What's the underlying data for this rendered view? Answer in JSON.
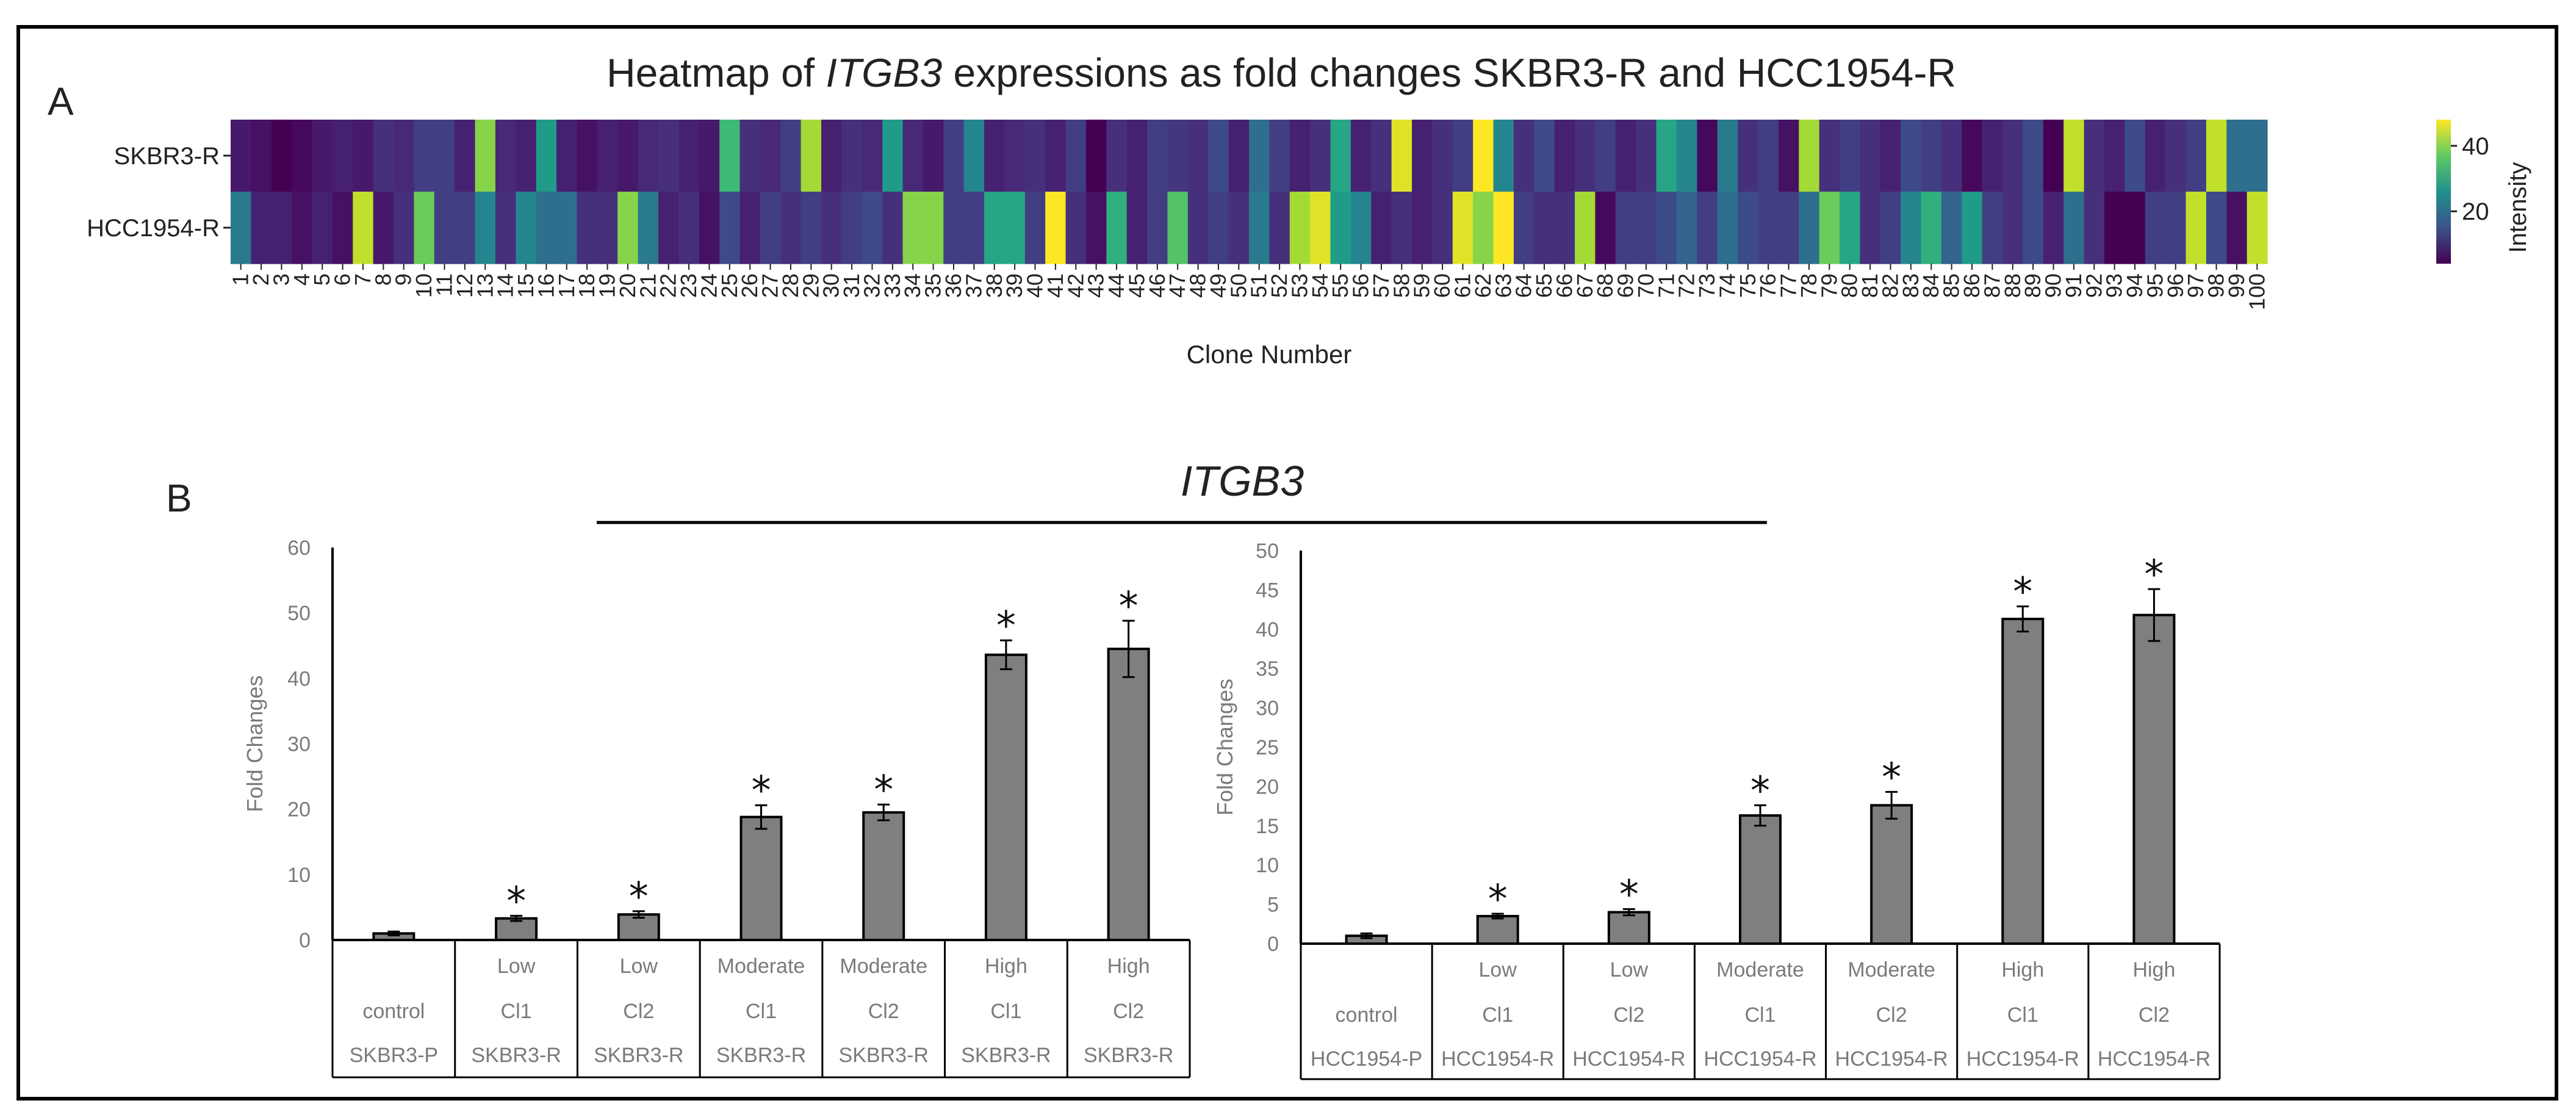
{
  "panel_a": {
    "label": "A",
    "title_prefix": "Heatmap of ",
    "title_gene": "ITGB3",
    "title_suffix": " expressions as fold changes SKBR3-R and HCC1954-R"
  },
  "panel_b": {
    "label": "B",
    "gene_title": "ITGB3"
  },
  "chart_data": [
    {
      "type": "heatmap",
      "title": "Heatmap of ITGB3 expressions as fold changes SKBR3-R and HCC1954-R",
      "xlabel": "Clone Number",
      "rows": [
        "SKBR3-R",
        "HCC1954-R"
      ],
      "columns": [
        1,
        2,
        3,
        4,
        5,
        6,
        7,
        8,
        9,
        10,
        11,
        12,
        13,
        14,
        15,
        16,
        17,
        18,
        19,
        20,
        21,
        22,
        23,
        24,
        25,
        26,
        27,
        28,
        29,
        30,
        31,
        32,
        33,
        34,
        35,
        36,
        37,
        38,
        39,
        40,
        41,
        42,
        43,
        44,
        45,
        46,
        47,
        48,
        49,
        50,
        51,
        52,
        53,
        54,
        55,
        56,
        57,
        58,
        59,
        60,
        61,
        62,
        63,
        64,
        65,
        66,
        67,
        68,
        69,
        70,
        71,
        72,
        73,
        74,
        75,
        76,
        77,
        78,
        79,
        80,
        81,
        82,
        83,
        84,
        85,
        86,
        87,
        88,
        89,
        90,
        91,
        92,
        93,
        94,
        95,
        96,
        97,
        98,
        99,
        100
      ],
      "values": [
        [
          7,
          6,
          4,
          5,
          7,
          8,
          7,
          10,
          9,
          12,
          12,
          8,
          40,
          9,
          8,
          28,
          8,
          6,
          8,
          7,
          9,
          10,
          8,
          7,
          34,
          10,
          9,
          12,
          42,
          8,
          10,
          9,
          28,
          9,
          7,
          12,
          24,
          8,
          9,
          10,
          8,
          12,
          4,
          10,
          8,
          12,
          11,
          10,
          14,
          8,
          20,
          12,
          8,
          10,
          30,
          8,
          10,
          46,
          8,
          10,
          12,
          48,
          24,
          10,
          14,
          8,
          10,
          12,
          8,
          10,
          30,
          24,
          5,
          22,
          10,
          12,
          6,
          42,
          10,
          12,
          10,
          8,
          14,
          12,
          10,
          5,
          8,
          10,
          14,
          4,
          44,
          10,
          8,
          14,
          8,
          10,
          12,
          44,
          20,
          20
        ],
        [
          22,
          8,
          8,
          6,
          8,
          6,
          44,
          7,
          10,
          38,
          12,
          12,
          24,
          10,
          24,
          20,
          20,
          10,
          10,
          40,
          22,
          8,
          10,
          6,
          14,
          8,
          12,
          10,
          12,
          10,
          12,
          14,
          10,
          40,
          40,
          12,
          12,
          30,
          30,
          12,
          48,
          10,
          6,
          32,
          8,
          12,
          36,
          10,
          12,
          10,
          22,
          10,
          42,
          46,
          28,
          24,
          8,
          10,
          8,
          10,
          46,
          40,
          48,
          12,
          10,
          10,
          42,
          5,
          12,
          12,
          14,
          18,
          12,
          20,
          14,
          12,
          12,
          20,
          38,
          30,
          10,
          12,
          24,
          32,
          18,
          28,
          12,
          10,
          14,
          8,
          20,
          10,
          4,
          4,
          12,
          12,
          44,
          14,
          6,
          44
        ]
      ],
      "colorbar": {
        "label": "Intensity",
        "ticks": [
          20,
          40
        ],
        "range": [
          4,
          48
        ]
      }
    },
    {
      "type": "bar",
      "ylabel": "Fold Changes",
      "ylim": [
        0,
        60
      ],
      "yticks": [
        0,
        10,
        20,
        30,
        40,
        50,
        60
      ],
      "categories": [
        [
          "",
          "control",
          "SKBR3-P"
        ],
        [
          "Low",
          "Cl1",
          "SKBR3-R"
        ],
        [
          "Low",
          "Cl2",
          "SKBR3-R"
        ],
        [
          "Moderate",
          "Cl1",
          "SKBR3-R"
        ],
        [
          "Moderate",
          "Cl2",
          "SKBR3-R"
        ],
        [
          "High",
          "Cl1",
          "SKBR3-R"
        ],
        [
          "High",
          "Cl2",
          "SKBR3-R"
        ]
      ],
      "values": [
        1.0,
        3.3,
        3.9,
        18.8,
        19.5,
        43.6,
        44.5
      ],
      "errors": [
        0.3,
        0.4,
        0.5,
        1.8,
        1.2,
        2.2,
        4.3
      ],
      "significance": [
        "",
        "*",
        "*",
        "*",
        "*",
        "*",
        "*"
      ]
    },
    {
      "type": "bar",
      "ylabel": "Fold Changes",
      "ylim": [
        0,
        50
      ],
      "yticks": [
        0,
        5,
        10,
        15,
        20,
        25,
        30,
        35,
        40,
        45,
        50
      ],
      "categories": [
        [
          "",
          "control",
          "HCC1954-P"
        ],
        [
          "Low",
          "Cl1",
          "HCC1954-R"
        ],
        [
          "Low",
          "Cl2",
          "HCC1954-R"
        ],
        [
          "Moderate",
          "Cl1",
          "HCC1954-R"
        ],
        [
          "Moderate",
          "Cl2",
          "HCC1954-R"
        ],
        [
          "High",
          "Cl1",
          "HCC1954-R"
        ],
        [
          "High",
          "Cl2",
          "HCC1954-R"
        ]
      ],
      "values": [
        1.0,
        3.5,
        4.0,
        16.3,
        17.6,
        41.3,
        41.8
      ],
      "errors": [
        0.3,
        0.3,
        0.4,
        1.3,
        1.7,
        1.6,
        3.3
      ],
      "significance": [
        "",
        "*",
        "*",
        "*",
        "*",
        "*",
        "*"
      ]
    }
  ]
}
